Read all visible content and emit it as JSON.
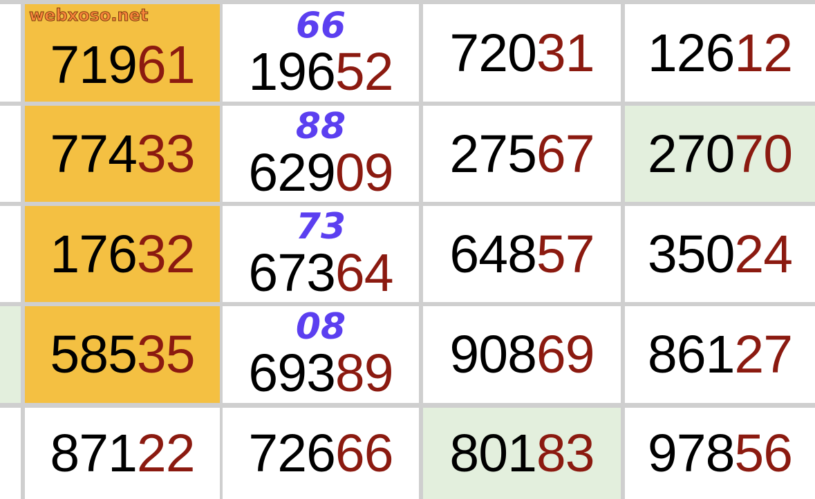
{
  "watermark": "webxoso.net",
  "colors": {
    "highlight_yellow": "#f4c042",
    "highlight_green": "#e3efdd",
    "tail_red": "#8b1a10",
    "handwriting": "#5b3ff0",
    "grid": "#cfcfcf"
  },
  "rows": [
    [
      {
        "head": "719",
        "tail": "61",
        "bg": "yellow"
      },
      {
        "head": "196",
        "tail": "52",
        "bg": "white"
      },
      {
        "head": "720",
        "tail": "31",
        "bg": "white"
      },
      {
        "head": "126",
        "tail": "12",
        "bg": "white"
      }
    ],
    [
      {
        "head": "774",
        "tail": "33",
        "bg": "yellow"
      },
      {
        "head": "629",
        "tail": "09",
        "bg": "white"
      },
      {
        "head": "275",
        "tail": "67",
        "bg": "white"
      },
      {
        "head": "270",
        "tail": "70",
        "bg": "green"
      }
    ],
    [
      {
        "head": "176",
        "tail": "32",
        "bg": "yellow"
      },
      {
        "head": "673",
        "tail": "64",
        "bg": "white"
      },
      {
        "head": "648",
        "tail": "57",
        "bg": "white"
      },
      {
        "head": "350",
        "tail": "24",
        "bg": "white"
      }
    ],
    [
      {
        "head": "585",
        "tail": "35",
        "bg": "yellow"
      },
      {
        "head": "693",
        "tail": "89",
        "bg": "white"
      },
      {
        "head": "908",
        "tail": "69",
        "bg": "white"
      },
      {
        "head": "861",
        "tail": "27",
        "bg": "white"
      }
    ],
    [
      {
        "head": "871",
        "tail": "22",
        "bg": "white"
      },
      {
        "head": "726",
        "tail": "66",
        "bg": "white"
      },
      {
        "head": "801",
        "tail": "83",
        "bg": "green"
      },
      {
        "head": "978",
        "tail": "56",
        "bg": "white"
      }
    ]
  ],
  "handwritten_notes": [
    "66",
    "88",
    "73",
    "08"
  ]
}
